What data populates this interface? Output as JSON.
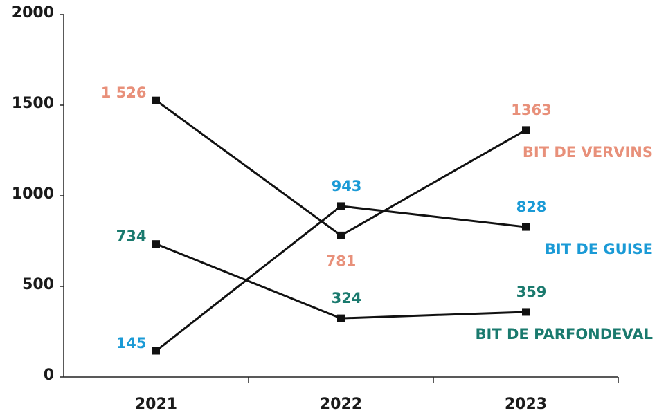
{
  "chart_data": {
    "type": "line",
    "categories": [
      "2021",
      "2022",
      "2023"
    ],
    "series": [
      {
        "name": "BIT DE VERVINS",
        "color": "#e8907a",
        "values": [
          1526,
          781,
          1363
        ],
        "value_labels": [
          "1 526",
          "781",
          "1363"
        ]
      },
      {
        "name": "BIT DE GUISE",
        "color": "#1a9ad6",
        "values": [
          145,
          943,
          828
        ]
      },
      {
        "name": "BIT DE PARFONDEVAL",
        "color": "#1a7a6e",
        "values": [
          734,
          324,
          359
        ]
      }
    ],
    "line_color": "#111111",
    "ylim": [
      0,
      2000
    ],
    "yticks": [
      0,
      500,
      1000,
      1500,
      2000
    ]
  }
}
